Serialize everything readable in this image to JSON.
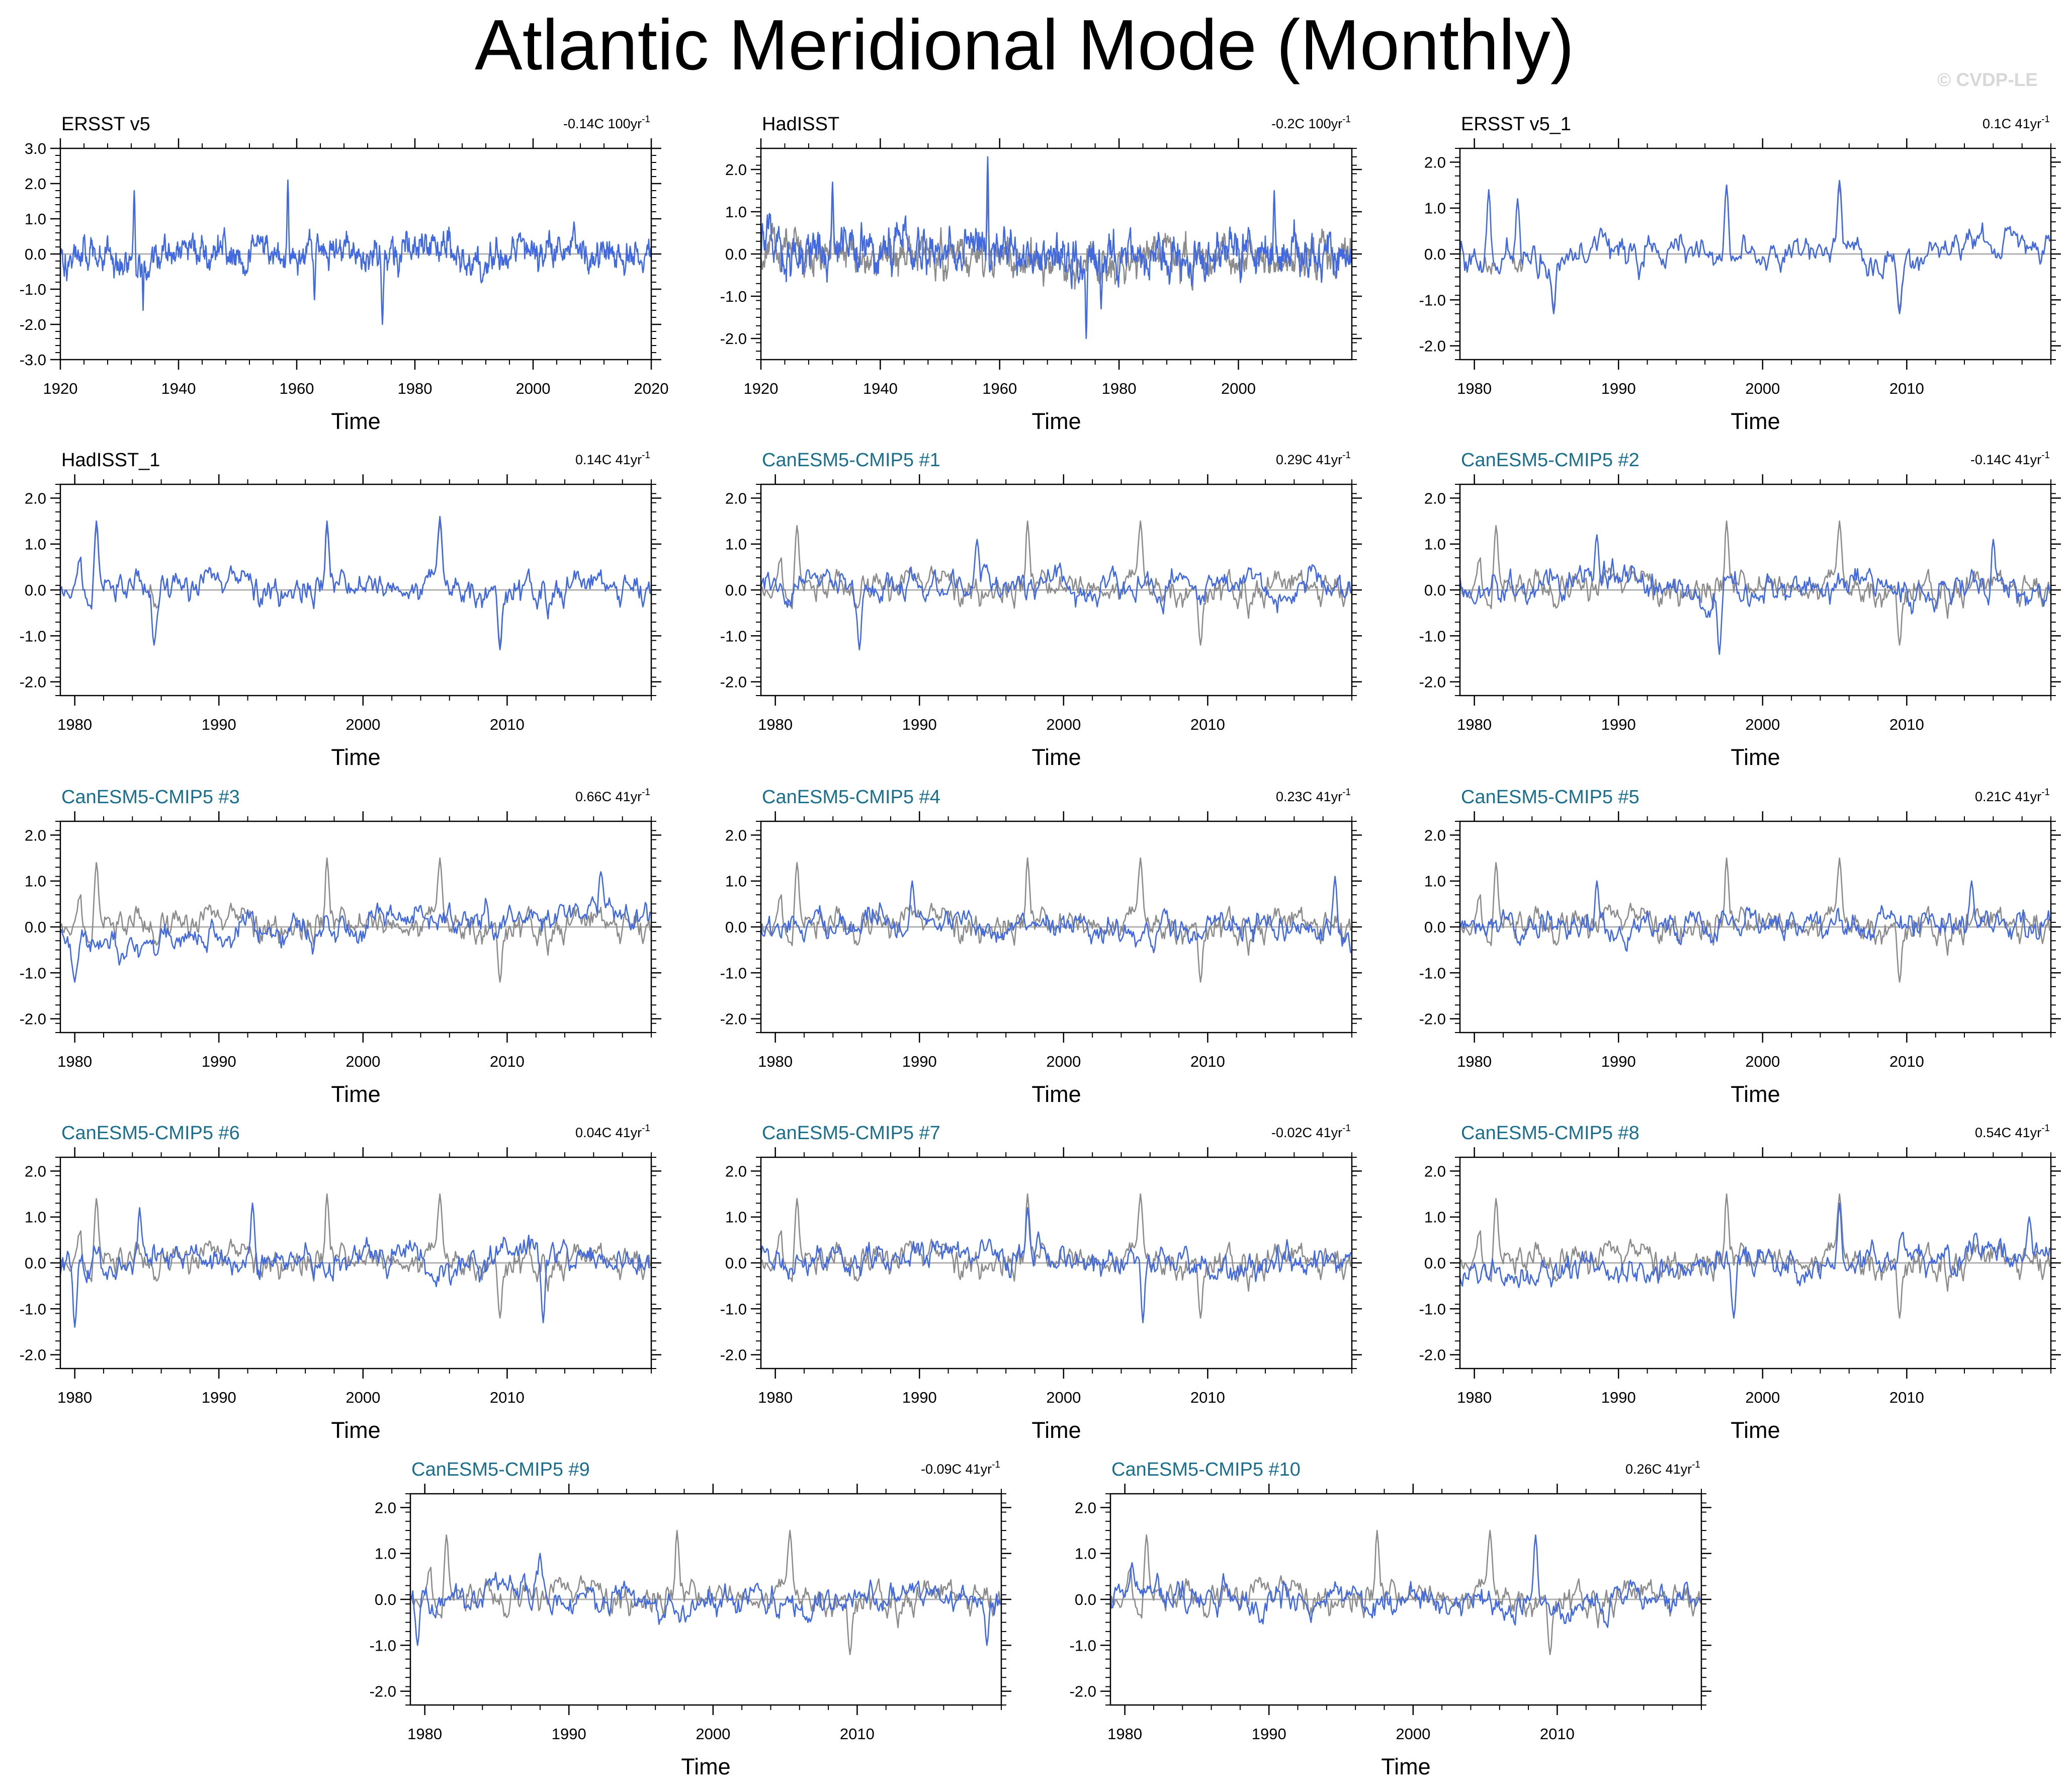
{
  "figure": {
    "title": "Atlantic Meridional Mode (Monthly)",
    "watermark": "© CVDP-LE",
    "colors": {
      "observed": "#8c8c8c",
      "model": "#4169e1",
      "model_title": "#1b6f8c",
      "zero_line": "#b0b0b0",
      "frame": "#000000"
    }
  },
  "chart_data": [
    {
      "type": "line",
      "title": "ERSST v5",
      "title_style": "obs",
      "trend": "-0.14C 100yr",
      "trend_exp": "-1",
      "xlabel": "Time",
      "xlim": [
        1920,
        2020
      ],
      "xticks": [
        1920,
        1940,
        1960,
        1980,
        2000,
        2020
      ],
      "ylim": [
        -3.0,
        3.0
      ],
      "yticks": [
        -3.0,
        -2.0,
        -1.0,
        0.0,
        1.0,
        2.0,
        3.0
      ],
      "series": [
        {
          "color_key": "model",
          "seed": 101,
          "amp": 0.58,
          "events": [
            [
              1932.5,
              1.8
            ],
            [
              1934.0,
              1.9
            ],
            [
              1958.5,
              2.1
            ],
            [
              1974.5,
              -2.0
            ],
            [
              1963.0,
              -1.3
            ],
            [
              1934.0,
              -1.6
            ]
          ]
        }
      ]
    },
    {
      "type": "line",
      "title": "HadISST",
      "title_style": "obs",
      "trend": "-0.2C 100yr",
      "trend_exp": "-1",
      "xlabel": "Time",
      "xlim": [
        1920,
        2019
      ],
      "xticks": [
        1920,
        1940,
        1960,
        1980,
        2000
      ],
      "ylim": [
        -2.5,
        2.5
      ],
      "yticks": [
        -2.0,
        -1.0,
        0.0,
        1.0,
        2.0
      ],
      "series": [
        {
          "color_key": "observed",
          "seed": 202,
          "amp": 0.55,
          "events": [
            [
              1932.0,
              1.5
            ],
            [
              1958.0,
              1.4
            ]
          ]
        },
        {
          "color_key": "model",
          "seed": 203,
          "amp": 0.6,
          "events": [
            [
              1958.0,
              2.3
            ],
            [
              1974.5,
              -2.0
            ],
            [
              1932.0,
              1.7
            ],
            [
              1977.0,
              -1.3
            ],
            [
              2006.0,
              1.5
            ]
          ]
        }
      ]
    },
    {
      "type": "line",
      "title": "ERSST v5_1",
      "title_style": "obs",
      "trend": "0.1C 41yr",
      "trend_exp": "-1",
      "xlabel": "Time",
      "xlim": [
        1979,
        2020
      ],
      "xticks": [
        1980,
        1990,
        2000,
        2010
      ],
      "ylim": [
        -2.3,
        2.3
      ],
      "yticks": [
        -2.0,
        -1.0,
        0.0,
        1.0,
        2.0
      ],
      "series": [
        {
          "color_key": "observed",
          "seed": 301,
          "amp": 0.45,
          "events": [
            [
              1997.5,
              1.5
            ],
            [
              2005.3,
              1.5
            ],
            [
              1985.5,
              -1.2
            ],
            [
              2009.5,
              -1.2
            ]
          ]
        },
        {
          "color_key": "model",
          "seed": 301,
          "amp": 0.45,
          "events": [
            [
              1981.0,
              1.4
            ],
            [
              1983.0,
              1.2
            ],
            [
              1997.5,
              1.5
            ],
            [
              2005.3,
              1.6
            ],
            [
              1985.5,
              -1.3
            ],
            [
              2009.5,
              -1.3
            ]
          ]
        }
      ]
    },
    {
      "type": "line",
      "title": "HadISST_1",
      "title_style": "obs",
      "trend": "0.14C 41yr",
      "trend_exp": "-1",
      "xlabel": "Time",
      "xlim": [
        1979,
        2020
      ],
      "xticks": [
        1980,
        1990,
        2000,
        2010
      ],
      "ylim": [
        -2.3,
        2.3
      ],
      "yticks": [
        -2.0,
        -1.0,
        0.0,
        1.0,
        2.0
      ],
      "series": [
        {
          "color_key": "observed",
          "seed": 401,
          "amp": 0.45,
          "events": [
            [
              1981.5,
              1.4
            ],
            [
              1997.5,
              1.4
            ],
            [
              2005.3,
              1.5
            ],
            [
              2009.5,
              -1.2
            ]
          ]
        },
        {
          "color_key": "model",
          "seed": 401,
          "amp": 0.46,
          "events": [
            [
              1981.5,
              1.5
            ],
            [
              1997.5,
              1.5
            ],
            [
              2005.3,
              1.6
            ],
            [
              1985.5,
              -1.2
            ],
            [
              2009.5,
              -1.3
            ]
          ]
        }
      ]
    },
    {
      "type": "line",
      "title": "CanESM5-CMIP5 #1",
      "title_style": "model",
      "trend": "0.29C 41yr",
      "trend_exp": "-1",
      "xlabel": "Time",
      "xlim": [
        1979,
        2020
      ],
      "xticks": [
        1980,
        1990,
        2000,
        2010
      ],
      "ylim": [
        -2.3,
        2.3
      ],
      "yticks": [
        -2.0,
        -1.0,
        0.0,
        1.0,
        2.0
      ],
      "series": [
        {
          "color_key": "observed",
          "seed": 401,
          "amp": 0.45,
          "events": [
            [
              1981.5,
              1.4
            ],
            [
              1997.5,
              1.5
            ],
            [
              2005.3,
              1.5
            ],
            [
              2009.5,
              -1.2
            ]
          ]
        },
        {
          "color_key": "model",
          "seed": 501,
          "amp": 0.42,
          "events": [
            [
              1994.0,
              1.1
            ],
            [
              1985.8,
              -1.3
            ]
          ]
        }
      ]
    },
    {
      "type": "line",
      "title": "CanESM5-CMIP5 #2",
      "title_style": "model",
      "trend": "-0.14C 41yr",
      "trend_exp": "-1",
      "xlabel": "Time",
      "xlim": [
        1979,
        2020
      ],
      "xticks": [
        1980,
        1990,
        2000,
        2010
      ],
      "ylim": [
        -2.3,
        2.3
      ],
      "yticks": [
        -2.0,
        -1.0,
        0.0,
        1.0,
        2.0
      ],
      "series": [
        {
          "color_key": "observed",
          "seed": 401,
          "amp": 0.45,
          "events": [
            [
              1981.5,
              1.4
            ],
            [
              1997.5,
              1.5
            ],
            [
              2005.3,
              1.5
            ],
            [
              2009.5,
              -1.2
            ]
          ]
        },
        {
          "color_key": "model",
          "seed": 601,
          "amp": 0.42,
          "events": [
            [
              1988.5,
              1.2
            ],
            [
              1997.0,
              -1.4
            ],
            [
              2016.0,
              1.1
            ]
          ]
        }
      ]
    },
    {
      "type": "line",
      "title": "CanESM5-CMIP5 #3",
      "title_style": "model",
      "trend": "0.66C 41yr",
      "trend_exp": "-1",
      "xlabel": "Time",
      "xlim": [
        1979,
        2020
      ],
      "xticks": [
        1980,
        1990,
        2000,
        2010
      ],
      "ylim": [
        -2.3,
        2.3
      ],
      "yticks": [
        -2.0,
        -1.0,
        0.0,
        1.0,
        2.0
      ],
      "series": [
        {
          "color_key": "observed",
          "seed": 401,
          "amp": 0.45,
          "events": [
            [
              1981.5,
              1.4
            ],
            [
              1997.5,
              1.5
            ],
            [
              2005.3,
              1.5
            ],
            [
              2009.5,
              -1.2
            ]
          ]
        },
        {
          "color_key": "model",
          "seed": 701,
          "amp": 0.42,
          "trend_add": 0.66,
          "events": [
            [
              1980.0,
              -1.2
            ],
            [
              2016.5,
              1.2
            ]
          ]
        }
      ]
    },
    {
      "type": "line",
      "title": "CanESM5-CMIP5 #4",
      "title_style": "model",
      "trend": "0.23C 41yr",
      "trend_exp": "-1",
      "xlabel": "Time",
      "xlim": [
        1979,
        2020
      ],
      "xticks": [
        1980,
        1990,
        2000,
        2010
      ],
      "ylim": [
        -2.3,
        2.3
      ],
      "yticks": [
        -2.0,
        -1.0,
        0.0,
        1.0,
        2.0
      ],
      "series": [
        {
          "color_key": "observed",
          "seed": 401,
          "amp": 0.45,
          "events": [
            [
              1981.5,
              1.4
            ],
            [
              1997.5,
              1.5
            ],
            [
              2005.3,
              1.5
            ],
            [
              2009.5,
              -1.2
            ]
          ]
        },
        {
          "color_key": "model",
          "seed": 801,
          "amp": 0.42,
          "events": [
            [
              1989.5,
              1.0
            ],
            [
              2018.8,
              1.1
            ]
          ]
        }
      ]
    },
    {
      "type": "line",
      "title": "CanESM5-CMIP5 #5",
      "title_style": "model",
      "trend": "0.21C 41yr",
      "trend_exp": "-1",
      "xlabel": "Time",
      "xlim": [
        1979,
        2020
      ],
      "xticks": [
        1980,
        1990,
        2000,
        2010
      ],
      "ylim": [
        -2.3,
        2.3
      ],
      "yticks": [
        -2.0,
        -1.0,
        0.0,
        1.0,
        2.0
      ],
      "series": [
        {
          "color_key": "observed",
          "seed": 401,
          "amp": 0.45,
          "events": [
            [
              1981.5,
              1.4
            ],
            [
              1997.5,
              1.5
            ],
            [
              2005.3,
              1.5
            ],
            [
              2009.5,
              -1.2
            ]
          ]
        },
        {
          "color_key": "model",
          "seed": 901,
          "amp": 0.4,
          "events": [
            [
              1988.5,
              1.0
            ],
            [
              2014.5,
              1.0
            ]
          ]
        }
      ]
    },
    {
      "type": "line",
      "title": "CanESM5-CMIP5 #6",
      "title_style": "model",
      "trend": "0.04C 41yr",
      "trend_exp": "-1",
      "xlabel": "Time",
      "xlim": [
        1979,
        2020
      ],
      "xticks": [
        1980,
        1990,
        2000,
        2010
      ],
      "ylim": [
        -2.3,
        2.3
      ],
      "yticks": [
        -2.0,
        -1.0,
        0.0,
        1.0,
        2.0
      ],
      "series": [
        {
          "color_key": "observed",
          "seed": 401,
          "amp": 0.45,
          "events": [
            [
              1981.5,
              1.4
            ],
            [
              1997.5,
              1.5
            ],
            [
              2005.3,
              1.5
            ],
            [
              2009.5,
              -1.2
            ]
          ]
        },
        {
          "color_key": "model",
          "seed": 1001,
          "amp": 0.44,
          "events": [
            [
              1980.0,
              -1.4
            ],
            [
              1992.3,
              1.3
            ],
            [
              1984.5,
              1.2
            ],
            [
              2012.5,
              -1.3
            ]
          ]
        }
      ]
    },
    {
      "type": "line",
      "title": "CanESM5-CMIP5 #7",
      "title_style": "model",
      "trend": "-0.02C 41yr",
      "trend_exp": "-1",
      "xlabel": "Time",
      "xlim": [
        1979,
        2020
      ],
      "xticks": [
        1980,
        1990,
        2000,
        2010
      ],
      "ylim": [
        -2.3,
        2.3
      ],
      "yticks": [
        -2.0,
        -1.0,
        0.0,
        1.0,
        2.0
      ],
      "series": [
        {
          "color_key": "observed",
          "seed": 401,
          "amp": 0.45,
          "events": [
            [
              1981.5,
              1.4
            ],
            [
              1997.5,
              1.5
            ],
            [
              2005.3,
              1.5
            ],
            [
              2009.5,
              -1.2
            ]
          ]
        },
        {
          "color_key": "model",
          "seed": 1101,
          "amp": 0.42,
          "events": [
            [
              1997.5,
              1.2
            ],
            [
              2005.5,
              -1.3
            ]
          ]
        }
      ]
    },
    {
      "type": "line",
      "title": "CanESM5-CMIP5 #8",
      "title_style": "model",
      "trend": "0.54C 41yr",
      "trend_exp": "-1",
      "xlabel": "Time",
      "xlim": [
        1979,
        2020
      ],
      "xticks": [
        1980,
        1990,
        2000,
        2010
      ],
      "ylim": [
        -2.3,
        2.3
      ],
      "yticks": [
        -2.0,
        -1.0,
        0.0,
        1.0,
        2.0
      ],
      "series": [
        {
          "color_key": "observed",
          "seed": 401,
          "amp": 0.45,
          "events": [
            [
              1981.5,
              1.4
            ],
            [
              1997.5,
              1.5
            ],
            [
              2005.3,
              1.5
            ],
            [
              2009.5,
              -1.2
            ]
          ]
        },
        {
          "color_key": "model",
          "seed": 1201,
          "amp": 0.4,
          "trend_add": 0.54,
          "events": [
            [
              2005.3,
              1.3
            ],
            [
              2018.5,
              1.0
            ],
            [
              1998.0,
              -1.2
            ]
          ]
        }
      ]
    },
    {
      "type": "line",
      "title": "CanESM5-CMIP5 #9",
      "title_style": "model",
      "trend": "-0.09C 41yr",
      "trend_exp": "-1",
      "xlabel": "Time",
      "xlim": [
        1979,
        2020
      ],
      "xticks": [
        1980,
        1990,
        2000,
        2010
      ],
      "ylim": [
        -2.3,
        2.3
      ],
      "yticks": [
        -2.0,
        -1.0,
        0.0,
        1.0,
        2.0
      ],
      "series": [
        {
          "color_key": "observed",
          "seed": 401,
          "amp": 0.45,
          "events": [
            [
              1981.5,
              1.4
            ],
            [
              1997.5,
              1.5
            ],
            [
              2005.3,
              1.5
            ],
            [
              2009.5,
              -1.2
            ]
          ]
        },
        {
          "color_key": "model",
          "seed": 1301,
          "amp": 0.42,
          "events": [
            [
              1979.5,
              -1.0
            ],
            [
              2019.0,
              -1.0
            ],
            [
              1988.0,
              1.0
            ]
          ]
        }
      ]
    },
    {
      "type": "line",
      "title": "CanESM5-CMIP5 #10",
      "title_style": "model",
      "trend": "0.26C 41yr",
      "trend_exp": "-1",
      "xlabel": "Time",
      "xlim": [
        1979,
        2020
      ],
      "xticks": [
        1980,
        1990,
        2000,
        2010
      ],
      "ylim": [
        -2.3,
        2.3
      ],
      "yticks": [
        -2.0,
        -1.0,
        0.0,
        1.0,
        2.0
      ],
      "series": [
        {
          "color_key": "observed",
          "seed": 401,
          "amp": 0.45,
          "events": [
            [
              1981.5,
              1.4
            ],
            [
              1997.5,
              1.5
            ],
            [
              2005.3,
              1.5
            ],
            [
              2009.5,
              -1.2
            ]
          ]
        },
        {
          "color_key": "model",
          "seed": 1401,
          "amp": 0.42,
          "events": [
            [
              2008.5,
              1.4
            ],
            [
              1980.5,
              0.8
            ]
          ]
        }
      ]
    }
  ]
}
